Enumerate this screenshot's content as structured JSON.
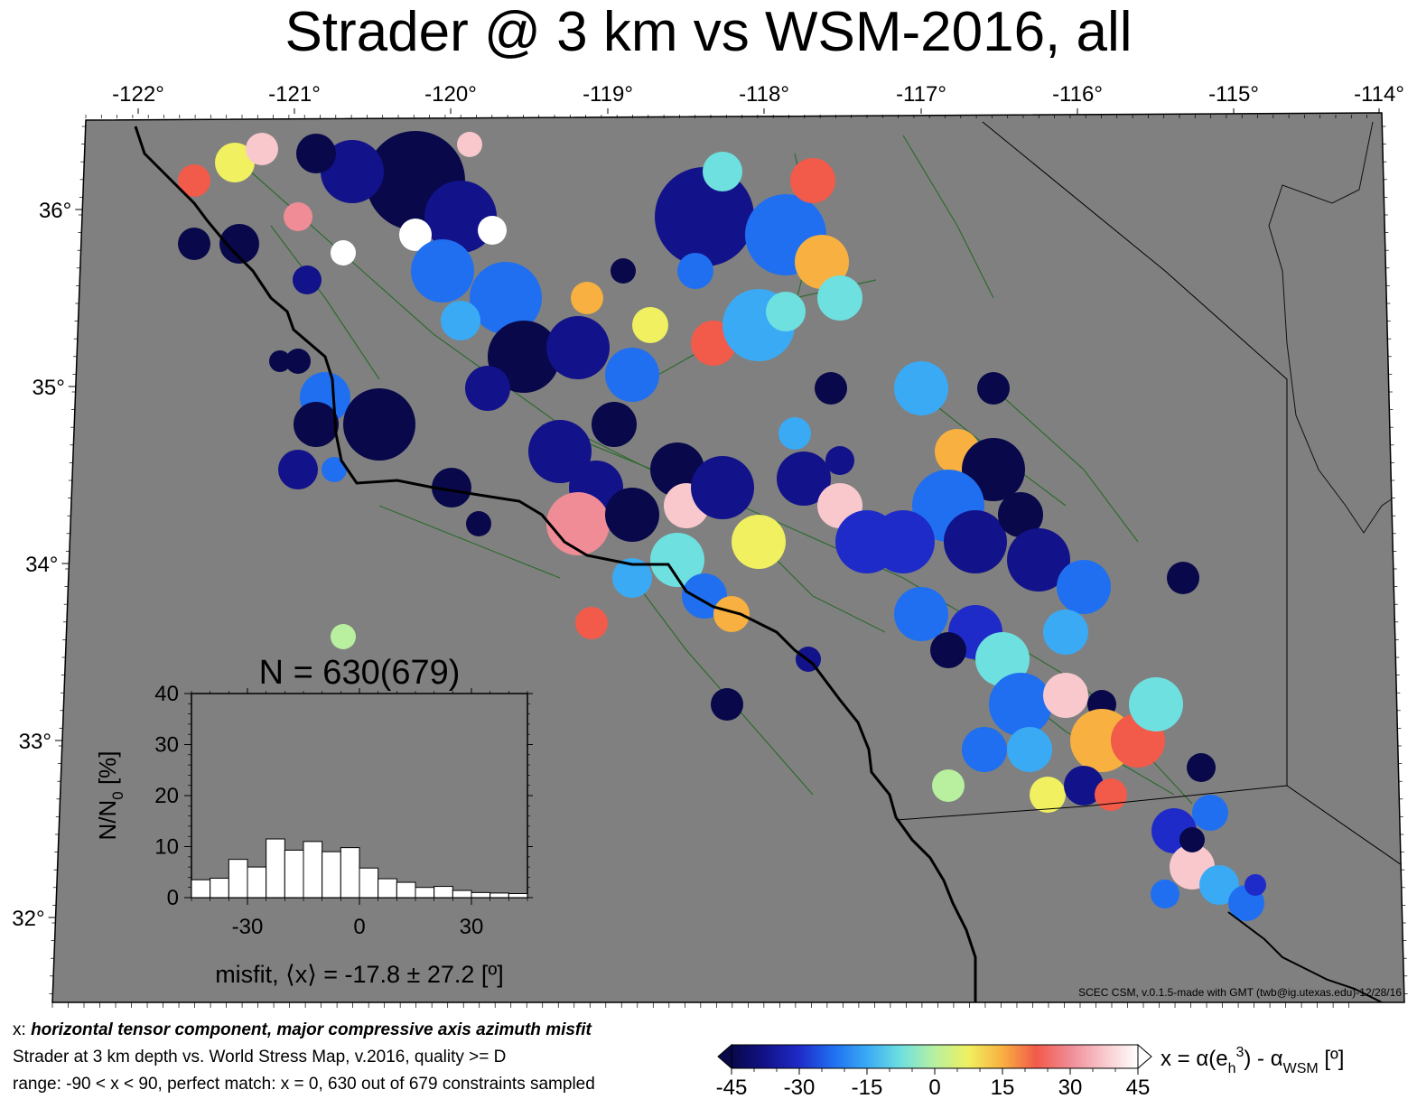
{
  "title": "Strader @ 3 km vs WSM-2016, all",
  "map": {
    "lon_labels": [
      "-122°",
      "-121°",
      "-120°",
      "-119°",
      "-118°",
      "-117°",
      "-116°",
      "-115°",
      "-114°"
    ],
    "lat_labels": [
      "36°",
      "35°",
      "34°",
      "33°",
      "32°"
    ],
    "lon_range": [
      -122.3,
      -114.1
    ],
    "lat_range": [
      31.5,
      36.5
    ],
    "background": "#808080",
    "credit": "SCEC CSM, v.0.1.5-made with GMT (twb@ig.utexas.edu)-12/28/16"
  },
  "inset": {
    "title": "N = 630(679)",
    "ylabel_main": "N/N",
    "ylabel_sub": "0",
    "ylabel_unit": " [%]",
    "yticks": [
      "0",
      "10",
      "20",
      "30",
      "40"
    ],
    "xticks": [
      "-30",
      "0",
      "30"
    ],
    "xlabel": "misfit, ⟨x⟩ = -17.8 ± 27.2 [º]",
    "bin_start": -45,
    "bin_width": 5,
    "ylim": [
      0,
      40
    ],
    "xlim": [
      -45,
      45
    ],
    "values": [
      3.5,
      3.8,
      7.5,
      6.0,
      11.5,
      9.3,
      11.0,
      9.0,
      9.8,
      5.8,
      3.7,
      3.0,
      2.0,
      2.2,
      1.4,
      1.0,
      0.9,
      0.8
    ]
  },
  "colorbar": {
    "tick_labels": [
      "-45",
      "-30",
      "-15",
      "0",
      "15",
      "30",
      "45"
    ],
    "label_prefix": "x = α(e",
    "label_sub": "h",
    "label_sup": "3",
    "label_mid": ") - α",
    "label_sub2": "WSM",
    "label_unit": " [º]",
    "stops": [
      "#08084a",
      "#12128a",
      "#1f2bc8",
      "#1f6ff0",
      "#3aaaf5",
      "#6ee0e0",
      "#b8f0a0",
      "#f0f060",
      "#f8b040",
      "#f25a4a",
      "#f08c96",
      "#f8c8cc",
      "#ffffff"
    ]
  },
  "captions": {
    "line1_prefix": "x: ",
    "line1_bold": "horizontal tensor component, major compressive axis azimuth misfit",
    "line2": "Strader at 3 km depth vs.  World Stress Map, v.2016, quality >= D",
    "line3": "range: -90 < x < 90, perfect match: x = 0, 630 out of 679 constraints sampled"
  }
}
